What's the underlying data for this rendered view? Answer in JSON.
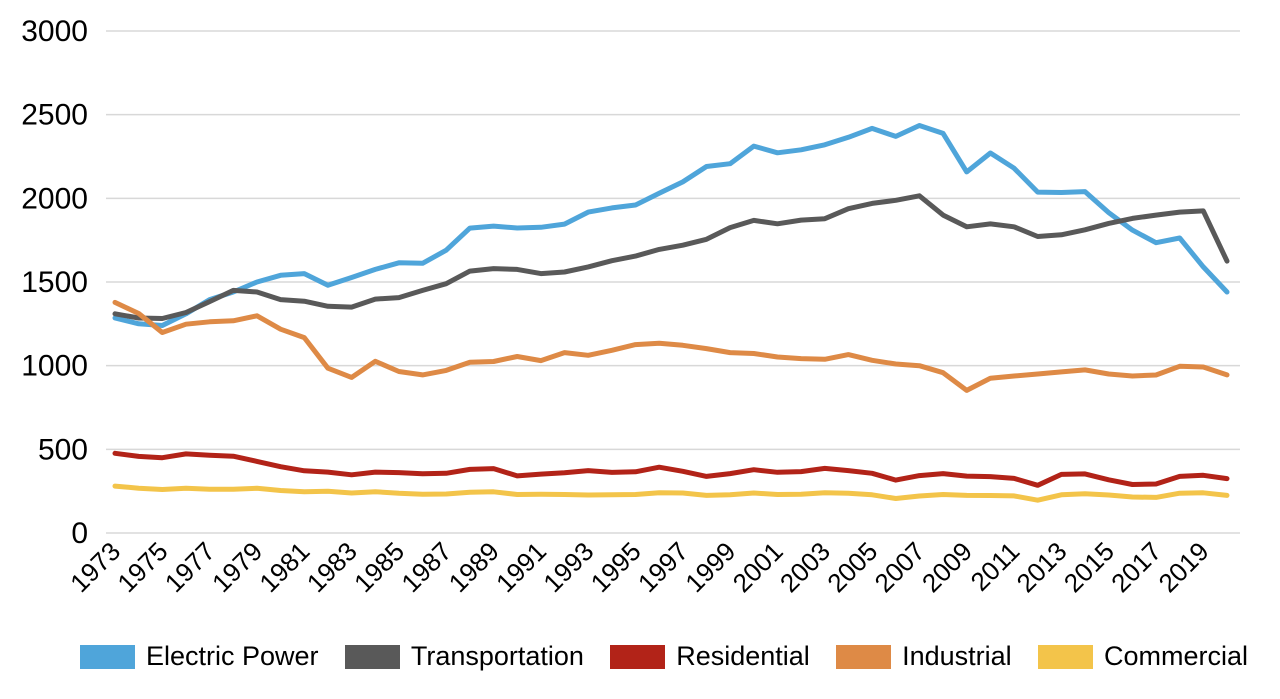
{
  "chart_data": {
    "type": "line",
    "title": "",
    "xlabel": "",
    "ylabel": "",
    "x": [
      1973,
      1974,
      1975,
      1976,
      1977,
      1978,
      1979,
      1980,
      1981,
      1982,
      1983,
      1984,
      1985,
      1986,
      1987,
      1988,
      1989,
      1990,
      1991,
      1992,
      1993,
      1994,
      1995,
      1996,
      1997,
      1998,
      1999,
      2000,
      2001,
      2002,
      2003,
      2004,
      2005,
      2006,
      2007,
      2008,
      2009,
      2010,
      2011,
      2012,
      2013,
      2014,
      2015,
      2016,
      2017,
      2018,
      2019,
      2020
    ],
    "x_tick_labels": [
      "1973",
      "1975",
      "1977",
      "1979",
      "1981",
      "1983",
      "1985",
      "1987",
      "1989",
      "1991",
      "1993",
      "1995",
      "1997",
      "1999",
      "2001",
      "2003",
      "2005",
      "2007",
      "2009",
      "2011",
      "2013",
      "2015",
      "2017",
      "2019"
    ],
    "y_ticks": [
      0,
      500,
      1000,
      1500,
      2000,
      2500,
      3000
    ],
    "ylim": [
      0,
      3000
    ],
    "grid": "horizontal",
    "legend_position": "bottom",
    "series": [
      {
        "name": "Electric Power",
        "color": "#4FA5DA",
        "values": [
          1285,
          1250,
          1240,
          1310,
          1395,
          1440,
          1500,
          1540,
          1550,
          1480,
          1527,
          1575,
          1615,
          1612,
          1690,
          1822,
          1834,
          1823,
          1827,
          1846,
          1918,
          1943,
          1960,
          2030,
          2098,
          2190,
          2207,
          2312,
          2272,
          2290,
          2320,
          2365,
          2418,
          2370,
          2435,
          2388,
          2158,
          2271,
          2180,
          2037,
          2035,
          2040,
          1915,
          1810,
          1735,
          1763,
          1590,
          1440
        ]
      },
      {
        "name": "Transportation",
        "color": "#595959",
        "values": [
          1310,
          1285,
          1282,
          1318,
          1383,
          1450,
          1440,
          1395,
          1385,
          1355,
          1350,
          1398,
          1407,
          1450,
          1490,
          1565,
          1580,
          1575,
          1550,
          1560,
          1590,
          1627,
          1655,
          1695,
          1720,
          1755,
          1825,
          1868,
          1848,
          1870,
          1878,
          1938,
          1970,
          1988,
          2015,
          1900,
          1830,
          1847,
          1830,
          1772,
          1782,
          1812,
          1850,
          1880,
          1900,
          1918,
          1925,
          1625
        ]
      },
      {
        "name": "Residential",
        "color": "#B22318",
        "values": [
          476,
          458,
          450,
          473,
          465,
          459,
          428,
          396,
          372,
          364,
          348,
          364,
          361,
          354,
          357,
          380,
          385,
          341,
          352,
          360,
          373,
          362,
          366,
          393,
          369,
          338,
          355,
          378,
          363,
          367,
          386,
          373,
          357,
          316,
          343,
          355,
          340,
          337,
          326,
          285,
          350,
          353,
          318,
          290,
          293,
          338,
          345,
          325
        ]
      },
      {
        "name": "Industrial",
        "color": "#DE8A46",
        "values": [
          1378,
          1312,
          1198,
          1248,
          1262,
          1268,
          1298,
          1218,
          1168,
          985,
          930,
          1026,
          965,
          945,
          972,
          1020,
          1025,
          1055,
          1030,
          1078,
          1062,
          1092,
          1126,
          1134,
          1122,
          1102,
          1078,
          1073,
          1052,
          1042,
          1038,
          1066,
          1032,
          1010,
          1000,
          958,
          852,
          925,
          938,
          950,
          963,
          975,
          950,
          938,
          944,
          996,
          992,
          945
        ]
      },
      {
        "name": "Commercial",
        "color": "#F3C44A",
        "values": [
          280,
          268,
          260,
          267,
          261,
          262,
          267,
          254,
          246,
          249,
          239,
          247,
          237,
          231,
          233,
          243,
          246,
          230,
          231,
          230,
          227,
          229,
          230,
          241,
          239,
          225,
          228,
          239,
          230,
          231,
          241,
          238,
          228,
          206,
          221,
          230,
          225,
          224,
          222,
          196,
          228,
          235,
          227,
          215,
          213,
          238,
          240,
          225
        ]
      }
    ]
  },
  "colors": {
    "background": "#FFFFFF",
    "gridline": "#D8D8D8",
    "axis_text": "#000000"
  }
}
